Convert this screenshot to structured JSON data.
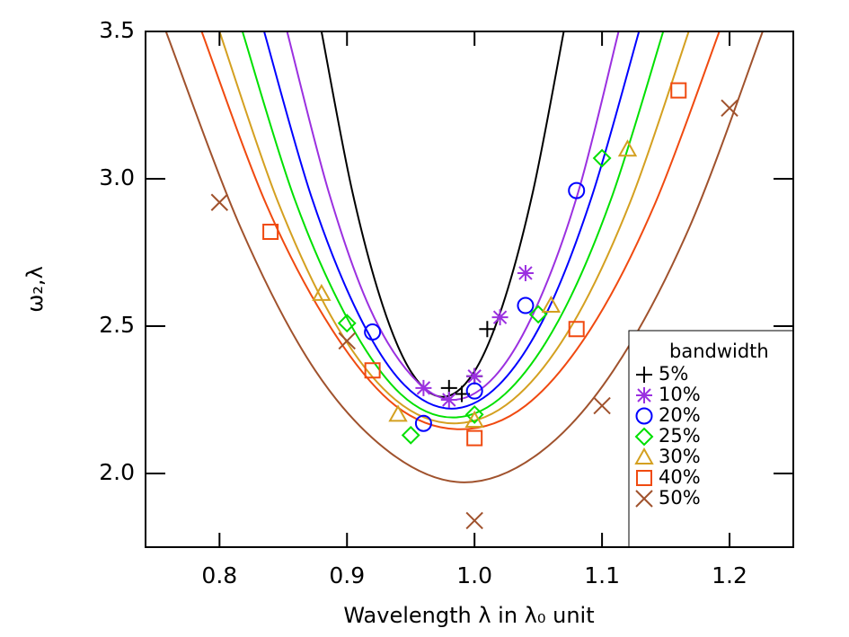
{
  "chart_data": {
    "type": "scatter",
    "x_label": "Wavelength λ in λ₀ unit",
    "y_label": "ω₂,λ",
    "legend_title": "bandwidth",
    "legend": "lower right",
    "xlim": [
      0.742,
      1.25
    ],
    "ylim": [
      1.75,
      3.5
    ],
    "xticks": [
      0.8,
      0.9,
      {
        "value": 1,
        "label": "1.0"
      },
      1.1,
      1.2
    ],
    "yticks": [
      {
        "value": 2,
        "label": "2.0"
      },
      2.5,
      {
        "value": 3,
        "label": "3.0"
      },
      3.5
    ],
    "series": [
      {
        "name": "5%",
        "color": "#000000",
        "marker": "plus",
        "x": [
          0.98,
          0.99,
          1.0,
          1.01
        ],
        "values": [
          2.29,
          2.27,
          2.33,
          2.49
        ],
        "fit": {
          "x": [
            0.88,
            0.904,
            0.928,
            0.951,
            0.975,
            0.999,
            1.022,
            1.046,
            1.07
          ],
          "values": [
            3.5,
            2.96,
            2.57,
            2.34,
            2.26,
            2.34,
            2.57,
            2.96,
            3.5
          ]
        }
      },
      {
        "name": "10%",
        "color": "#9b30e0",
        "marker": "star",
        "x": [
          0.96,
          0.98,
          1.0,
          1.02,
          1.04
        ],
        "values": [
          2.29,
          2.25,
          2.33,
          2.53,
          2.68
        ],
        "fit": {
          "x": [
            0.853,
            0.886,
            0.918,
            0.951,
            0.983,
            1.016,
            1.048,
            1.081,
            1.113
          ],
          "values": [
            3.5,
            2.95,
            2.56,
            2.33,
            2.25,
            2.33,
            2.56,
            2.95,
            3.5
          ]
        }
      },
      {
        "name": "20%",
        "color": "#0000ff",
        "marker": "circle",
        "x": [
          0.92,
          0.96,
          1.0,
          1.04,
          1.08
        ],
        "values": [
          2.48,
          2.17,
          2.28,
          2.57,
          2.96
        ],
        "fit": {
          "x": [
            0.835,
            0.872,
            0.909,
            0.945,
            0.982,
            1.019,
            1.056,
            1.092,
            1.129
          ],
          "values": [
            3.5,
            2.94,
            2.54,
            2.3,
            2.22,
            2.3,
            2.54,
            2.94,
            3.5
          ]
        }
      },
      {
        "name": "25%",
        "color": "#00e000",
        "marker": "diamond",
        "x": [
          0.9,
          0.95,
          1.0,
          1.05,
          1.1
        ],
        "values": [
          2.51,
          2.13,
          2.2,
          2.54,
          3.07
        ],
        "fit": {
          "x": [
            0.818,
            0.859,
            0.901,
            0.942,
            0.983,
            1.024,
            1.066,
            1.107,
            1.148
          ],
          "values": [
            3.5,
            2.93,
            2.52,
            2.27,
            2.19,
            2.27,
            2.52,
            2.93,
            3.5
          ]
        }
      },
      {
        "name": "30%",
        "color": "#d4a020",
        "marker": "triangle",
        "x": [
          0.88,
          0.94,
          1.0,
          1.06,
          1.12
        ],
        "values": [
          2.61,
          2.2,
          2.18,
          2.57,
          3.1
        ],
        "fit": {
          "x": [
            0.8,
            0.846,
            0.892,
            0.938,
            0.984,
            1.03,
            1.076,
            1.122,
            1.168
          ],
          "values": [
            3.5,
            2.92,
            2.5,
            2.25,
            2.17,
            2.25,
            2.5,
            2.92,
            3.5
          ]
        }
      },
      {
        "name": "40%",
        "color": "#f04a10",
        "marker": "square",
        "x": [
          0.84,
          0.92,
          1.0,
          1.08,
          1.16
        ],
        "values": [
          2.82,
          2.35,
          2.12,
          2.49,
          3.3
        ],
        "fit": {
          "x": [
            0.786,
            0.837,
            0.888,
            0.938,
            0.989,
            1.04,
            1.091,
            1.141,
            1.192
          ],
          "values": [
            3.5,
            2.91,
            2.49,
            2.23,
            2.15,
            2.23,
            2.49,
            2.91,
            3.5
          ]
        }
      },
      {
        "name": "50%",
        "color": "#a0522d",
        "marker": "x",
        "x": [
          0.8,
          0.9,
          1.0,
          1.1,
          1.2
        ],
        "values": [
          2.92,
          2.45,
          1.84,
          2.23,
          3.24
        ],
        "fit": {
          "x": [
            0.758,
            0.817,
            0.875,
            0.934,
            0.992,
            1.051,
            1.109,
            1.168,
            1.226
          ],
          "values": [
            3.5,
            2.83,
            2.35,
            2.07,
            1.97,
            2.07,
            2.35,
            2.83,
            3.5
          ]
        }
      }
    ]
  }
}
